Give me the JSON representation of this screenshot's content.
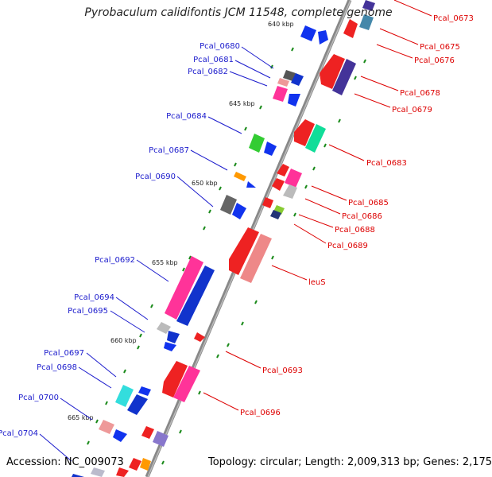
{
  "title": "Pyrobaculum calidifontis JCM 11548, complete genome",
  "footer": {
    "accession": "Accession: NC_009073",
    "topology": "Topology: circular; Length: 2,009,313 bp; Genes: 2,175"
  },
  "colors": {
    "backbone": "#888888",
    "left_label": "#1a1acc",
    "right_label": "#dd0000",
    "tick": "#1a8a1a"
  },
  "scale_labels": [
    {
      "text": "640 kbp"
    },
    {
      "text": "645 kbp"
    },
    {
      "text": "650 kbp"
    },
    {
      "text": "655 kbp"
    },
    {
      "text": "660 kbp"
    },
    {
      "text": "665 kbp"
    }
  ],
  "left_genes": [
    {
      "label": "Pcal_0680",
      "color": "#555555"
    },
    {
      "label": "Pcal_0681",
      "color": "#ee9999"
    },
    {
      "label": "Pcal_0682",
      "color": "#ff3399"
    },
    {
      "label": "Pcal_0684",
      "color": "#33cc33"
    },
    {
      "label": "Pcal_0687",
      "color": "#ff9900"
    },
    {
      "label": "Pcal_0690",
      "color": "#666666"
    },
    {
      "label": "Pcal_0692",
      "color": "#ff3399"
    },
    {
      "label": "Pcal_0694",
      "color": "#bbbbbb"
    },
    {
      "label": "Pcal_0695",
      "color": "#1133cc"
    },
    {
      "label": "Pcal_0697",
      "color": "#33dddd"
    },
    {
      "label": "Pcal_0698",
      "color": "#1133cc"
    },
    {
      "label": "Pcal_0700",
      "color": "#ee9999"
    },
    {
      "label": "Pcal_0704",
      "color": "#bbbbcc"
    }
  ],
  "right_genes": [
    {
      "label": "Pcal_0673",
      "color": "#4488aa"
    },
    {
      "label": "Pcal_0675",
      "color": "#4488aa"
    },
    {
      "label": "Pcal_0676",
      "color": "#ee2222"
    },
    {
      "label": "Pcal_0678",
      "color": "#ee2222"
    },
    {
      "label": "Pcal_0679",
      "color": "#443399"
    },
    {
      "label": "Pcal_0683",
      "color": "#ee2222"
    },
    {
      "label": "Pcal_0685",
      "color": "#ee2222"
    },
    {
      "label": "Pcal_0686",
      "color": "#bbbbbb"
    },
    {
      "label": "Pcal_0688",
      "color": "#88cc33"
    },
    {
      "label": "Pcal_0689",
      "color": "#223377"
    },
    {
      "label": "leuS",
      "color": "#ee2222"
    },
    {
      "label": "Pcal_0693",
      "color": "#ee2222"
    },
    {
      "label": "Pcal_0696",
      "color": "#ff3399"
    }
  ]
}
